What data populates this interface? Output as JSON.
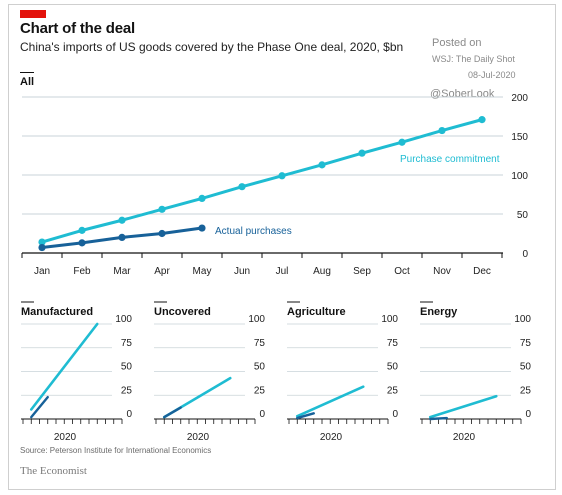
{
  "header": {
    "title": "Chart of the deal",
    "subtitle": "China's imports of US goods covered by the Phase One deal, 2020, $bn",
    "panel_label": "All"
  },
  "watermark": {
    "posted": "Posted on",
    "source": "WSJ: The Daily Shot",
    "date": "08-Jul-2020",
    "handle": "@SoberLook"
  },
  "footer": {
    "source": "Source: Peterson Institute for International Economics",
    "brand": "The Economist"
  },
  "colors": {
    "commitment": "#1fbcd2",
    "actual": "#176199",
    "grid": "#c9d3d8",
    "axis": "#121212",
    "brand_red": "#e3120b"
  },
  "chart_data": [
    {
      "type": "line",
      "panel": "All",
      "categories": [
        "Jan",
        "Feb",
        "Mar",
        "Apr",
        "May",
        "Jun",
        "Jul",
        "Aug",
        "Sep",
        "Oct",
        "Nov",
        "Dec"
      ],
      "ylim": [
        0,
        200
      ],
      "yticks": [
        0,
        50,
        100,
        150,
        200
      ],
      "grid": true,
      "series": [
        {
          "name": "Purchase commitment",
          "values": [
            14,
            29,
            42,
            56,
            70,
            85,
            99,
            113,
            128,
            142,
            157,
            171
          ]
        },
        {
          "name": "Actual purchases",
          "values": [
            7,
            13,
            20,
            25,
            32,
            null,
            null,
            null,
            null,
            null,
            null,
            null
          ]
        }
      ]
    },
    {
      "type": "line",
      "panel": "Manufactured",
      "xlabel": "2020",
      "months": 12,
      "ylim": [
        0,
        100
      ],
      "yticks": [
        0,
        25,
        50,
        75,
        100
      ],
      "series": [
        {
          "name": "Purchase commitment",
          "x": [
            1,
            9
          ],
          "values": [
            10,
            100
          ]
        },
        {
          "name": "Actual purchases",
          "x": [
            1,
            3
          ],
          "values": [
            2,
            23
          ]
        }
      ]
    },
    {
      "type": "line",
      "panel": "Uncovered",
      "xlabel": "2020",
      "months": 12,
      "ylim": [
        0,
        100
      ],
      "yticks": [
        0,
        25,
        50,
        75,
        100
      ],
      "series": [
        {
          "name": "Purchase commitment",
          "x": [
            1,
            9
          ],
          "values": [
            2,
            43
          ]
        },
        {
          "name": "Actual purchases",
          "x": [
            1,
            3
          ],
          "values": [
            2,
            12
          ]
        }
      ]
    },
    {
      "type": "line",
      "panel": "Agriculture",
      "xlabel": "2020",
      "months": 12,
      "ylim": [
        0,
        100
      ],
      "yticks": [
        0,
        25,
        50,
        75,
        100
      ],
      "series": [
        {
          "name": "Purchase commitment",
          "x": [
            1,
            9
          ],
          "values": [
            3,
            34
          ]
        },
        {
          "name": "Actual purchases",
          "x": [
            1,
            3
          ],
          "values": [
            1,
            6
          ]
        }
      ]
    },
    {
      "type": "line",
      "panel": "Energy",
      "xlabel": "2020",
      "months": 12,
      "ylim": [
        0,
        100
      ],
      "yticks": [
        0,
        25,
        50,
        75,
        100
      ],
      "series": [
        {
          "name": "Purchase commitment",
          "x": [
            1,
            9
          ],
          "values": [
            2,
            24
          ]
        },
        {
          "name": "Actual purchases",
          "x": [
            1,
            3
          ],
          "values": [
            0,
            1
          ]
        }
      ]
    }
  ]
}
